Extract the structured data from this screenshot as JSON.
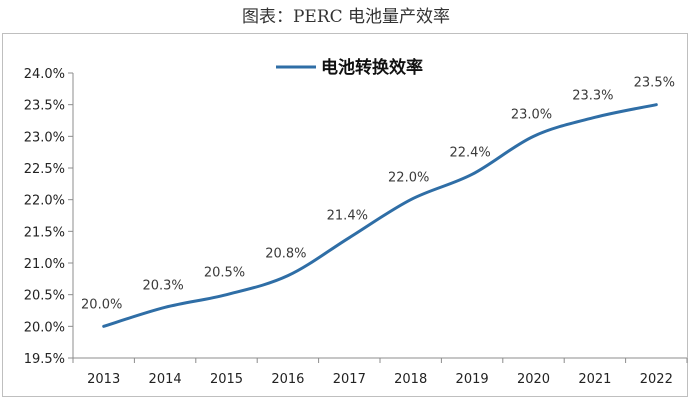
{
  "page_caption": "图表：PERC 电池量产效率",
  "chart_data": {
    "type": "line",
    "title": "",
    "xlabel": "",
    "ylabel": "",
    "categories": [
      "2013",
      "2014",
      "2015",
      "2016",
      "2017",
      "2018",
      "2019",
      "2020",
      "2021",
      "2022"
    ],
    "series": [
      {
        "name": "电池转换效率",
        "values": [
          20.0,
          20.3,
          20.5,
          20.8,
          21.4,
          22.0,
          22.4,
          23.0,
          23.3,
          23.5
        ],
        "labels": [
          "20.0%",
          "20.3%",
          "20.5%",
          "20.8%",
          "21.4%",
          "22.0%",
          "22.4%",
          "23.0%",
          "23.3%",
          "23.5%"
        ],
        "color": "#2f6ea6"
      }
    ],
    "ylim": [
      19.5,
      24.0
    ],
    "yticks": [
      19.5,
      20.0,
      20.5,
      21.0,
      21.5,
      22.0,
      22.5,
      23.0,
      23.5,
      24.0
    ],
    "ytick_labels": [
      "19.5%",
      "20.0%",
      "20.5%",
      "21.0%",
      "21.5%",
      "22.0%",
      "22.5%",
      "23.0%",
      "23.5%",
      "24.0%"
    ],
    "grid": false,
    "legend_position": "top-center"
  }
}
